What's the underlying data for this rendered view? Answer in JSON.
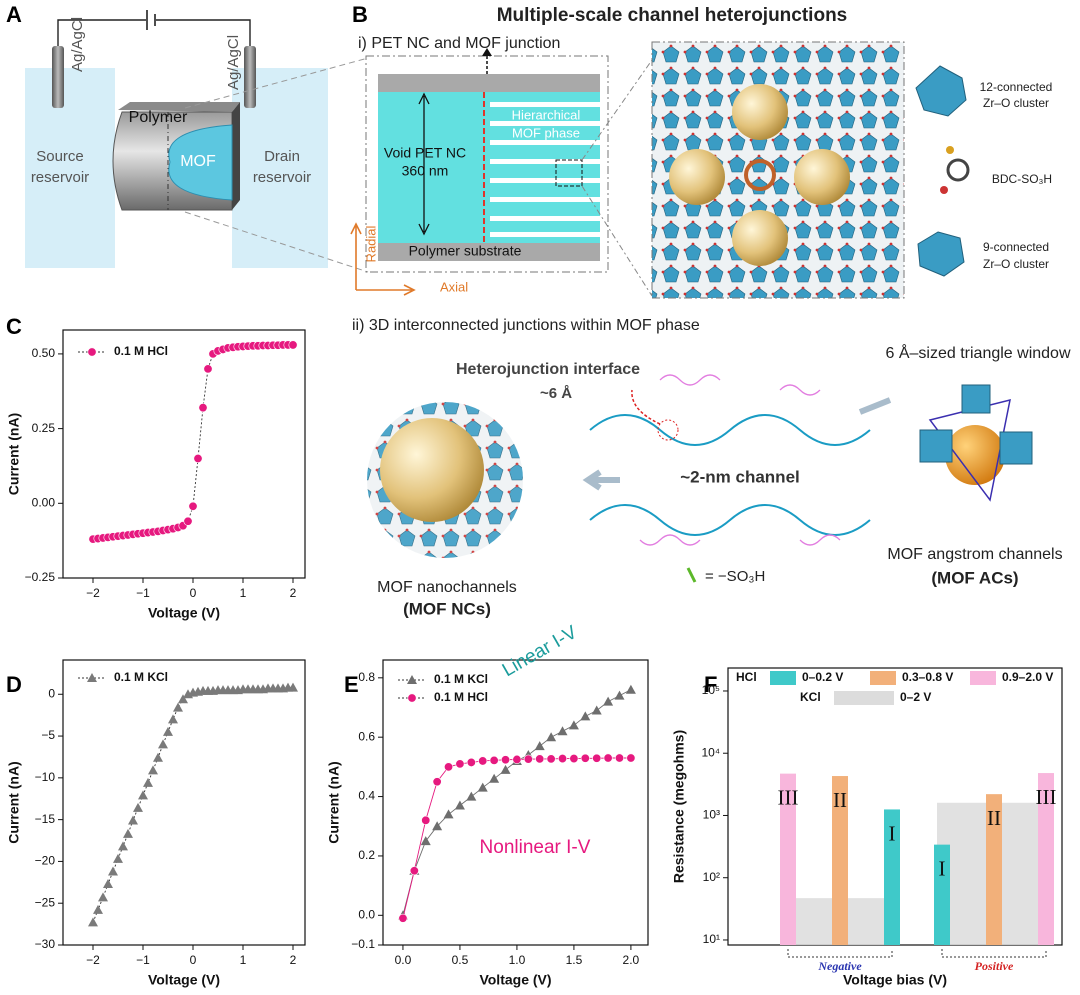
{
  "panel_labels": [
    "A",
    "B",
    "C",
    "D",
    "E",
    "F"
  ],
  "panel_a": {
    "electrode_labels": [
      "Ag/AgCl",
      "Ag/AgCl"
    ],
    "polymer": "Polymer",
    "mof": "MOF",
    "source": [
      "Source",
      "reservoir"
    ],
    "drain": [
      "Drain",
      "reservoir"
    ]
  },
  "panel_b": {
    "title": "Multiple-scale channel heterojunctions",
    "section_i": "i)  PET NC and MOF junction",
    "mof_phase": [
      "Hierarchical",
      "MOF phase"
    ],
    "void": [
      "Void PET NC",
      "360 nm"
    ],
    "substrate": "Polymer substrate",
    "radial": "Radial",
    "axial": "Axial",
    "clusters": [
      [
        "12-connected",
        "Zr–O cluster"
      ],
      [
        "BDC-SO₃H"
      ],
      [
        "9-connected",
        "Zr–O cluster"
      ]
    ]
  },
  "panel_ii": {
    "title": "ii)  3D interconnected junctions within MOF phase",
    "interface": "Heterojunction interface",
    "interface_size": "~6 Å",
    "window": "6 Å–sized triangle window",
    "channel": "~2-nm channel",
    "nc": [
      "MOF nanochannels",
      "(MOF NCs)"
    ],
    "ac": [
      "MOF angstrom channels",
      "(MOF ACs)"
    ],
    "legend": "= −SO₃H"
  },
  "chart_data": [
    {
      "type": "line",
      "xlabel": "Voltage (V)",
      "ylabel": "Current (nA)",
      "x": [
        -2,
        -1.9,
        -1.8,
        -1.7,
        -1.6,
        -1.5,
        -1.4,
        -1.3,
        -1.2,
        -1.1,
        -1,
        -0.9,
        -0.8,
        -0.7,
        -0.6,
        -0.5,
        -0.4,
        -0.3,
        -0.2,
        -0.1,
        0,
        0.1,
        0.2,
        0.3,
        0.4,
        0.5,
        0.6,
        0.7,
        0.8,
        0.9,
        1,
        1.1,
        1.2,
        1.3,
        1.4,
        1.5,
        1.6,
        1.7,
        1.8,
        1.9,
        2
      ],
      "series": [
        {
          "name": "0.1 M HCl",
          "color": "#e6197f",
          "marker": "circle",
          "values": [
            -0.12,
            -0.118,
            -0.116,
            -0.114,
            -0.112,
            -0.11,
            -0.108,
            -0.106,
            -0.104,
            -0.102,
            -0.1,
            -0.098,
            -0.096,
            -0.094,
            -0.091,
            -0.088,
            -0.085,
            -0.081,
            -0.075,
            -0.06,
            -0.01,
            0.15,
            0.32,
            0.45,
            0.5,
            0.51,
            0.515,
            0.52,
            0.522,
            0.524,
            0.525,
            0.526,
            0.527,
            0.527,
            0.528,
            0.528,
            0.529,
            0.529,
            0.53,
            0.53,
            0.53
          ]
        }
      ],
      "xlim": [
        -2.6,
        2.24
      ],
      "ylim": [
        -0.25,
        0.58
      ],
      "xticks": [
        {
          "value": -2,
          "label": "−2"
        },
        {
          "value": -1,
          "label": "−1"
        },
        0,
        1,
        2
      ],
      "yticks": [
        {
          "value": -0.25,
          "label": "−0.25"
        },
        {
          "value": 0,
          "label": "0.00"
        },
        0.25,
        {
          "value": 0.5,
          "label": "0.50"
        }
      ]
    },
    {
      "type": "line",
      "xlabel": "Voltage (V)",
      "ylabel": "Current (nA)",
      "x": [
        -2,
        -1.9,
        -1.8,
        -1.7,
        -1.6,
        -1.5,
        -1.4,
        -1.3,
        -1.2,
        -1.1,
        -1,
        -0.9,
        -0.8,
        -0.7,
        -0.6,
        -0.5,
        -0.4,
        -0.3,
        -0.2,
        -0.1,
        0,
        0.1,
        0.2,
        0.3,
        0.4,
        0.5,
        0.6,
        0.7,
        0.8,
        0.9,
        1,
        1.1,
        1.2,
        1.3,
        1.4,
        1.5,
        1.6,
        1.7,
        1.8,
        1.9,
        2
      ],
      "series": [
        {
          "name": "0.1 M KCl",
          "color": "#7a7a7a",
          "marker": "triangle",
          "values": [
            -27.3,
            -25.8,
            -24.3,
            -22.7,
            -21.2,
            -19.7,
            -18.2,
            -16.7,
            -15.1,
            -13.6,
            -12.1,
            -10.6,
            -9.1,
            -7.6,
            -6,
            -4.5,
            -3,
            -1.6,
            -0.6,
            0,
            0.2,
            0.3,
            0.4,
            0.4,
            0.4,
            0.5,
            0.5,
            0.5,
            0.5,
            0.5,
            0.6,
            0.6,
            0.6,
            0.6,
            0.6,
            0.7,
            0.7,
            0.7,
            0.7,
            0.8,
            0.8
          ]
        }
      ],
      "xlim": [
        -2.6,
        2.24
      ],
      "ylim": [
        -30,
        4.1
      ],
      "xticks": [
        {
          "value": -2,
          "label": "−2"
        },
        {
          "value": -1,
          "label": "−1"
        },
        0,
        1,
        2
      ],
      "yticks": [
        {
          "value": -30,
          "label": "−30"
        },
        {
          "value": -25,
          "label": "−25"
        },
        {
          "value": -20,
          "label": "−20"
        },
        {
          "value": -15,
          "label": "−15"
        },
        {
          "value": -10,
          "label": "−10"
        },
        {
          "value": -5,
          "label": "−5"
        },
        0
      ]
    },
    {
      "type": "line",
      "xlabel": "Voltage (V)",
      "ylabel": "Current (nA)",
      "x": [
        0,
        0.1,
        0.2,
        0.3,
        0.4,
        0.5,
        0.6,
        0.7,
        0.8,
        0.9,
        1,
        1.1,
        1.2,
        1.3,
        1.4,
        1.5,
        1.6,
        1.7,
        1.8,
        1.9,
        2
      ],
      "series": [
        {
          "name": "0.1 M KCl",
          "color": "#6e6e6e",
          "marker": "triangle",
          "values": [
            0,
            0.15,
            0.25,
            0.3,
            0.34,
            0.37,
            0.4,
            0.43,
            0.46,
            0.49,
            0.52,
            0.54,
            0.57,
            0.6,
            0.62,
            0.64,
            0.67,
            0.69,
            0.72,
            0.74,
            0.76
          ]
        },
        {
          "name": "0.1 M HCl",
          "color": "#e6197f",
          "marker": "circle",
          "values": [
            -0.01,
            0.15,
            0.32,
            0.45,
            0.5,
            0.51,
            0.515,
            0.52,
            0.522,
            0.524,
            0.525,
            0.526,
            0.527,
            0.527,
            0.528,
            0.528,
            0.529,
            0.529,
            0.53,
            0.53,
            0.53
          ]
        }
      ],
      "annotations": [
        {
          "text": "Linear I-V",
          "color": "#1b9c9c"
        },
        {
          "text": "Nonlinear I-V",
          "color": "#e6197f"
        }
      ],
      "xlim": [
        -0.175,
        2.15
      ],
      "ylim": [
        -0.1,
        0.86
      ],
      "xticks": [
        {
          "value": 0,
          "label": "0.0"
        },
        0.5,
        {
          "value": 1,
          "label": "1.0"
        },
        1.5,
        {
          "value": 2,
          "label": "2.0"
        }
      ],
      "yticks": [
        {
          "value": -0.1,
          "label": "−0.1"
        },
        {
          "value": 0,
          "label": "0.0"
        },
        0.2,
        0.4,
        0.6,
        0.8
      ]
    },
    {
      "type": "bar",
      "log_scale": true,
      "xlabel": "Voltage bias (V)",
      "ylabel": "Resistance (megohms)",
      "categories": [
        "Negative",
        "Positive"
      ],
      "category_colors": [
        "#2a35b0",
        "#d42424"
      ],
      "legend_groups": [
        "HCl",
        "KCl"
      ],
      "series": [
        {
          "name": "0–0.2 V",
          "group": 0,
          "color": "#3fc9c9",
          "bar_label": "I",
          "values": [
            1250,
            340
          ]
        },
        {
          "name": "0.3–0.8 V",
          "group": 0,
          "color": "#f2b07a",
          "bar_label": "II",
          "values": [
            4300,
            2200
          ]
        },
        {
          "name": "0.9–2.0 V",
          "group": 0,
          "color": "#f8b6dc",
          "bar_label": "III",
          "values": [
            4700,
            4800
          ]
        },
        {
          "name": "0–2 V",
          "group": 1,
          "color": "#dcdcdc",
          "values": [
            47,
            1600
          ]
        }
      ],
      "ylim": [
        8.3,
        234000
      ],
      "yticks": [
        {
          "value": 10,
          "label": "10¹"
        },
        {
          "value": 100,
          "label": "10²"
        },
        {
          "value": 1000,
          "label": "10³"
        },
        {
          "value": 10000,
          "label": "10⁴"
        },
        {
          "value": 100000,
          "label": "10⁵"
        }
      ]
    }
  ]
}
